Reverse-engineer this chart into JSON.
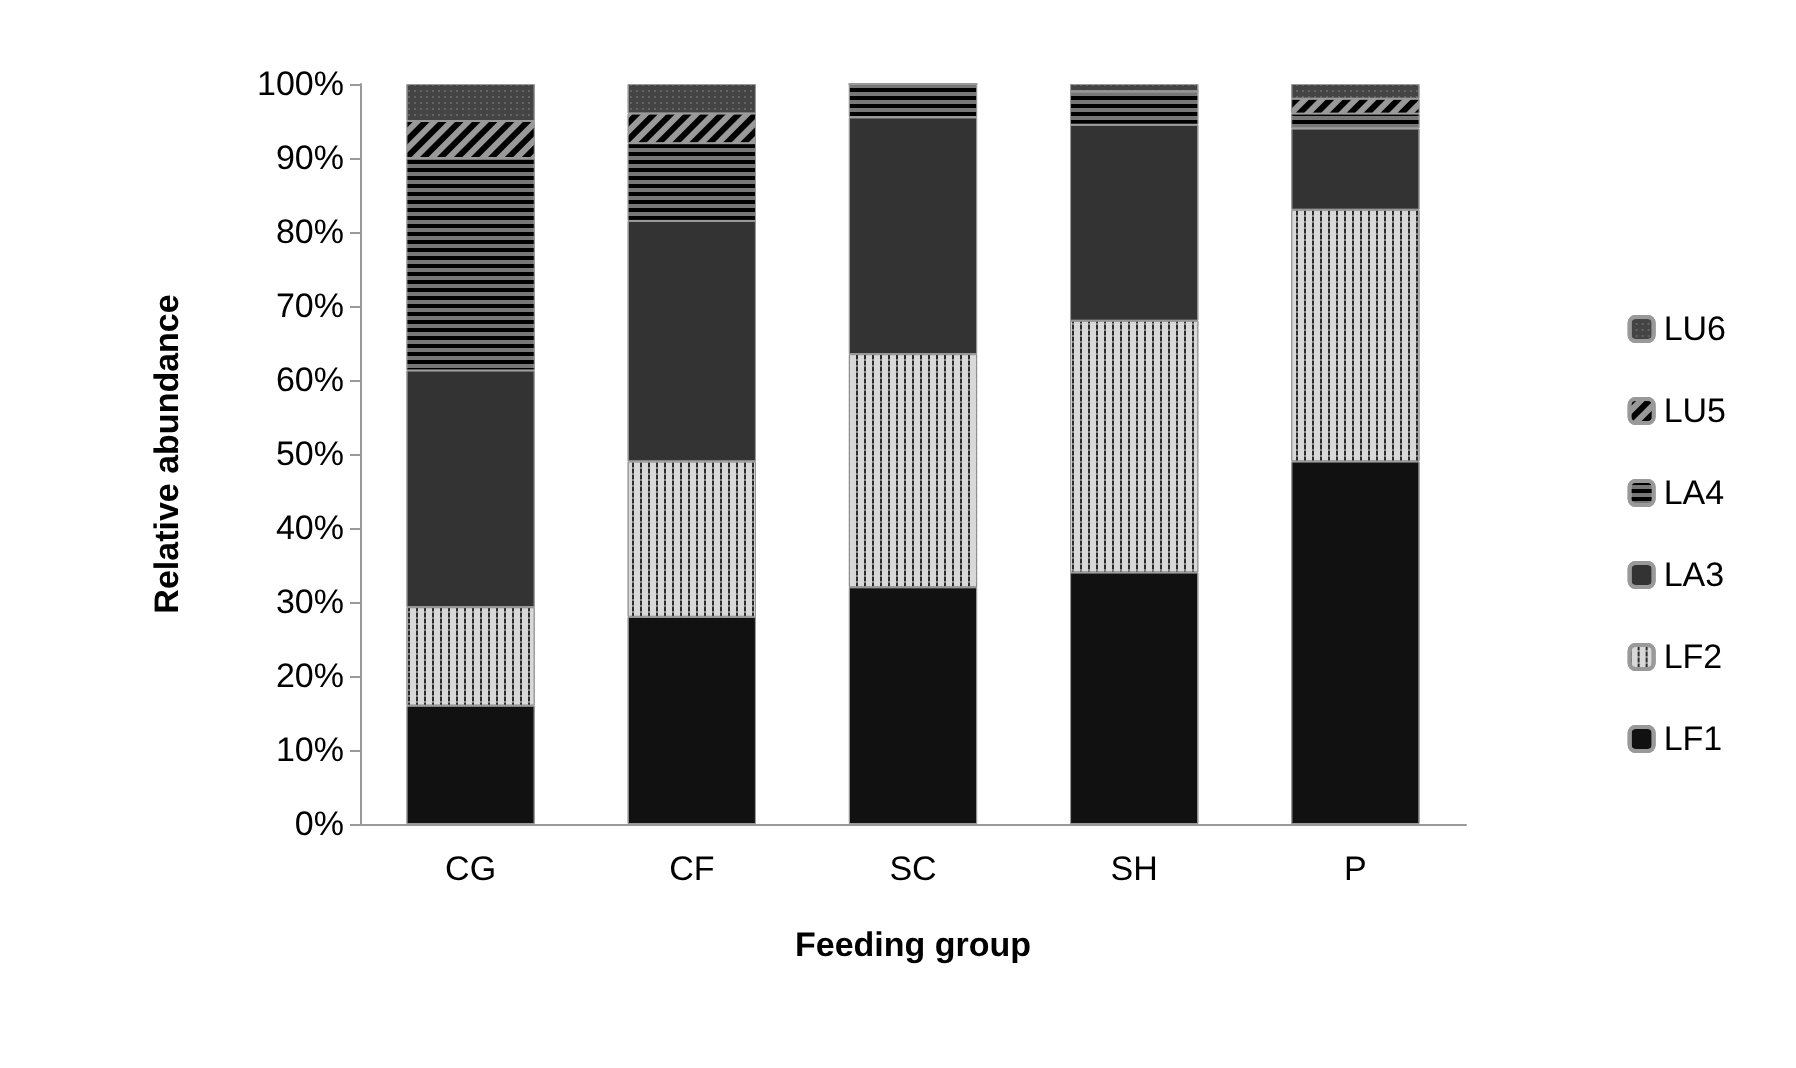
{
  "chart_data": {
    "type": "bar",
    "stacked": true,
    "xlabel": "Feeding group",
    "ylabel": "Relative abundance",
    "categories": [
      "CG",
      "CF",
      "SC",
      "SH",
      "P"
    ],
    "series": [
      {
        "name": "LF1",
        "color": "#111111",
        "values": [
          16,
          28,
          32,
          34,
          49
        ]
      },
      {
        "name": "LF2",
        "color": "#d8d8d8",
        "values": [
          13.3,
          21,
          31.5,
          34,
          34
        ]
      },
      {
        "name": "LA3",
        "color": "#333333",
        "values": [
          32,
          32.5,
          32,
          26.5,
          11
        ]
      },
      {
        "name": "LA4",
        "color": "#777777",
        "values": [
          28.7,
          10.5,
          4.5,
          4.5,
          2
        ]
      },
      {
        "name": "LU5",
        "color": "#999999",
        "values": [
          5,
          4,
          0,
          0,
          2
        ]
      },
      {
        "name": "LU6",
        "color": "#444444",
        "values": [
          5,
          4,
          0,
          1,
          2
        ]
      }
    ],
    "ylim": [
      0,
      100
    ],
    "yticks": [
      {
        "value": 0,
        "label": "0%"
      },
      {
        "value": 10,
        "label": "10%"
      },
      {
        "value": 20,
        "label": "20%"
      },
      {
        "value": 30,
        "label": "30%"
      },
      {
        "value": 40,
        "label": "40%"
      },
      {
        "value": 50,
        "label": "50%"
      },
      {
        "value": 60,
        "label": "60%"
      },
      {
        "value": 70,
        "label": "70%"
      },
      {
        "value": 80,
        "label": "80%"
      },
      {
        "value": 90,
        "label": "90%"
      },
      {
        "value": 100,
        "label": "100%"
      }
    ],
    "grid": false,
    "legend": "right"
  }
}
